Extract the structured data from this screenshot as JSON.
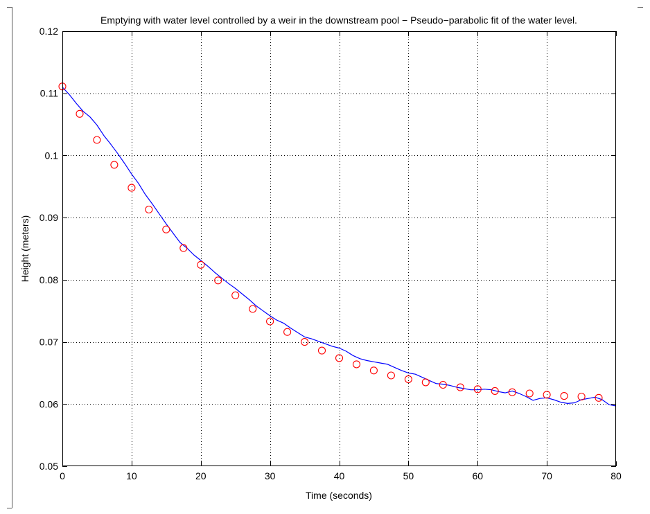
{
  "chart_data": {
    "type": "scatter",
    "title": "Emptying with water level controlled by a weir in the downstream pool − Pseudo−parabolic fit of the water level.",
    "xlabel": "Time (seconds)",
    "ylabel": "Height (meters)",
    "xlim": [
      0,
      80
    ],
    "ylim": [
      0.05,
      0.12
    ],
    "xticks": [
      "0",
      "10",
      "20",
      "30",
      "40",
      "50",
      "60",
      "70",
      "80"
    ],
    "yticks": [
      "0.05",
      "0.06",
      "0.07",
      "0.08",
      "0.09",
      "0.1",
      "0.11",
      "0.12"
    ],
    "grid": true,
    "series": [
      {
        "style": "line",
        "color": "#0000ff",
        "x": [
          0,
          1,
          2,
          3,
          4,
          5,
          6,
          7,
          8,
          9,
          10,
          11,
          12,
          13,
          14,
          15,
          16,
          17,
          18,
          19,
          20,
          21,
          22,
          23,
          24,
          25,
          26,
          27,
          28,
          29,
          30,
          31,
          32,
          33,
          34,
          35,
          36,
          37,
          38,
          39,
          40,
          41,
          42,
          43,
          44,
          45,
          46,
          47,
          48,
          49,
          50,
          51,
          52,
          53,
          54,
          55,
          56,
          57,
          58,
          59,
          60,
          61,
          62,
          63,
          64,
          65,
          66,
          67,
          68,
          69,
          70,
          71,
          72,
          73,
          74,
          75,
          76,
          77,
          78,
          79,
          80
        ],
        "values": [
          0.111,
          0.1098,
          0.1084,
          0.1071,
          0.1062,
          0.1049,
          0.1032,
          0.1018,
          0.1003,
          0.0987,
          0.097,
          0.0955,
          0.0937,
          0.0922,
          0.0906,
          0.089,
          0.0875,
          0.086,
          0.0851,
          0.084,
          0.0831,
          0.0822,
          0.0812,
          0.0803,
          0.0794,
          0.0786,
          0.0777,
          0.0768,
          0.0758,
          0.075,
          0.0742,
          0.0735,
          0.073,
          0.0722,
          0.0715,
          0.0708,
          0.0705,
          0.0701,
          0.0697,
          0.0693,
          0.069,
          0.0685,
          0.0678,
          0.0673,
          0.067,
          0.0668,
          0.0666,
          0.0664,
          0.0659,
          0.0654,
          0.065,
          0.0648,
          0.0643,
          0.0638,
          0.0633,
          0.0632,
          0.063,
          0.0627,
          0.0625,
          0.0623,
          0.0623,
          0.0624,
          0.0623,
          0.062,
          0.0618,
          0.0621,
          0.0617,
          0.0612,
          0.0606,
          0.0609,
          0.061,
          0.0607,
          0.0603,
          0.0601,
          0.0602,
          0.0607,
          0.0609,
          0.0611,
          0.0607,
          0.0599,
          0.0597
        ]
      },
      {
        "style": "markers",
        "color": "#ff0000",
        "marker": "circle",
        "x": [
          0,
          2.5,
          5,
          7.5,
          10,
          12.5,
          15,
          17.5,
          20,
          22.5,
          25,
          27.5,
          30,
          32.5,
          35,
          37.5,
          40,
          42.5,
          45,
          47.5,
          50,
          52.5,
          55,
          57.5,
          60,
          62.5,
          65,
          67.5,
          70,
          72.5,
          75,
          77.5
        ],
        "values": [
          0.1111,
          0.1067,
          0.1025,
          0.0985,
          0.0948,
          0.0913,
          0.0881,
          0.0851,
          0.0824,
          0.0799,
          0.0775,
          0.0753,
          0.0733,
          0.0716,
          0.07,
          0.0686,
          0.0674,
          0.0664,
          0.0654,
          0.0646,
          0.064,
          0.0635,
          0.0631,
          0.0627,
          0.0624,
          0.0621,
          0.0619,
          0.0617,
          0.0615,
          0.0613,
          0.0612,
          0.061
        ]
      }
    ]
  }
}
